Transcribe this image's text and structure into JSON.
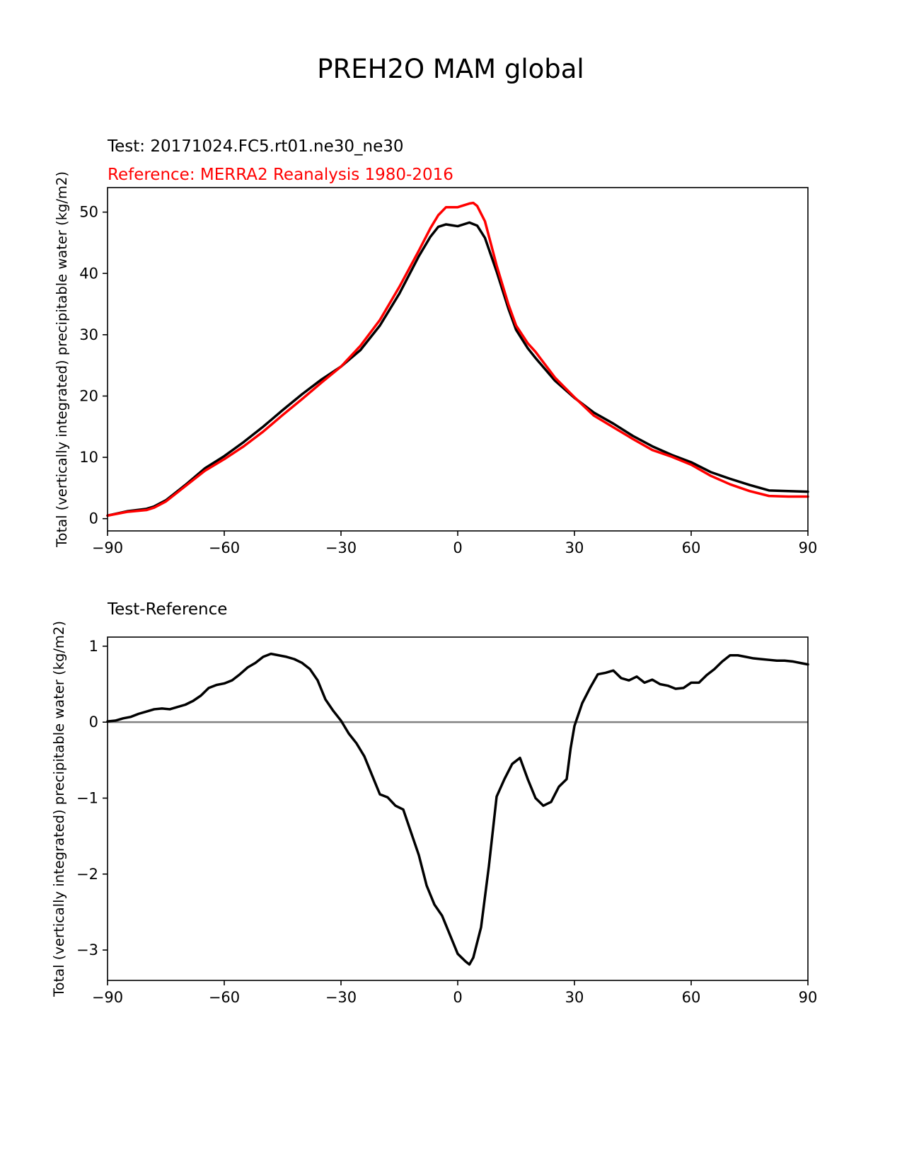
{
  "title": "PREH2O MAM global",
  "chart_data": [
    {
      "type": "line",
      "title_lines": [
        {
          "text": "Test: 20171024.FC5.rt01.ne30_ne30",
          "color": "#000000"
        },
        {
          "text": "Reference: MERRA2 Reanalysis 1980-2016",
          "color": "#ff0000"
        }
      ],
      "xlabel": "",
      "ylabel": "Total (vertically integrated) precipitable water (kg/m2)",
      "xlim": [
        -90,
        90
      ],
      "ylim": [
        -2,
        54
      ],
      "xticks": [
        -90,
        -60,
        -30,
        0,
        30,
        60,
        90
      ],
      "xtick_labels": [
        "−90",
        "−60",
        "−30",
        "0",
        "30",
        "60",
        "90"
      ],
      "yticks": [
        0,
        10,
        20,
        30,
        40,
        50
      ],
      "ytick_labels": [
        "0",
        "10",
        "20",
        "30",
        "40",
        "50"
      ],
      "series": [
        {
          "name": "Test",
          "color": "#000000",
          "x": [
            -90,
            -85,
            -80,
            -78,
            -75,
            -70,
            -65,
            -60,
            -55,
            -50,
            -45,
            -40,
            -35,
            -30,
            -25,
            -20,
            -15,
            -10,
            -7,
            -5,
            -3,
            0,
            3,
            5,
            7,
            10,
            13,
            15,
            18,
            20,
            25,
            30,
            35,
            40,
            45,
            50,
            55,
            60,
            65,
            70,
            75,
            80,
            85,
            90
          ],
          "values": [
            0.5,
            1.2,
            1.6,
            2.0,
            3.0,
            5.5,
            8.2,
            10.2,
            12.5,
            15.0,
            17.7,
            20.3,
            22.7,
            24.8,
            27.5,
            31.5,
            36.7,
            42.8,
            46.0,
            47.6,
            48.0,
            47.7,
            48.3,
            47.8,
            45.8,
            40.3,
            34.3,
            30.8,
            27.8,
            26.2,
            22.5,
            19.7,
            17.3,
            15.5,
            13.5,
            11.8,
            10.4,
            9.2,
            7.6,
            6.5,
            5.5,
            4.6,
            4.5,
            4.4
          ]
        },
        {
          "name": "Reference",
          "color": "#ff0000",
          "x": [
            -90,
            -85,
            -80,
            -78,
            -75,
            -70,
            -65,
            -60,
            -55,
            -50,
            -45,
            -40,
            -35,
            -30,
            -25,
            -20,
            -15,
            -10,
            -7,
            -5,
            -3,
            0,
            3,
            4,
            5,
            7,
            10,
            13,
            15,
            18,
            20,
            25,
            30,
            35,
            40,
            45,
            50,
            55,
            60,
            65,
            70,
            75,
            80,
            85,
            90
          ],
          "values": [
            0.5,
            1.1,
            1.4,
            1.8,
            2.8,
            5.3,
            7.8,
            9.7,
            11.8,
            14.2,
            16.9,
            19.5,
            22.2,
            24.8,
            28.2,
            32.4,
            37.8,
            43.7,
            47.4,
            49.5,
            50.8,
            50.8,
            51.4,
            51.5,
            51.0,
            48.5,
            41.3,
            35.0,
            31.5,
            28.6,
            27.2,
            23.0,
            19.8,
            16.8,
            14.9,
            13.0,
            11.2,
            10.1,
            8.8,
            7.0,
            5.6,
            4.5,
            3.7,
            3.6,
            3.6
          ]
        }
      ]
    },
    {
      "type": "line",
      "title_lines": [
        {
          "text": "Test-Reference",
          "color": "#000000"
        }
      ],
      "xlabel": "",
      "ylabel": "Total (vertically integrated) precipitable water (kg/m2)",
      "xlim": [
        -90,
        90
      ],
      "ylim": [
        -3.4,
        1.12
      ],
      "xticks": [
        -90,
        -60,
        -30,
        0,
        30,
        60,
        90
      ],
      "xtick_labels": [
        "−90",
        "−60",
        "−30",
        "0",
        "30",
        "60",
        "90"
      ],
      "yticks": [
        -3,
        -2,
        -1,
        0,
        1
      ],
      "ytick_labels": [
        "−3",
        "−2",
        "−1",
        "0",
        "1"
      ],
      "reference_line": {
        "y": 0,
        "color": "#808080"
      },
      "series": [
        {
          "name": "Test-Reference",
          "color": "#000000",
          "x": [
            -90,
            -88,
            -86,
            -84,
            -82,
            -80,
            -78,
            -76,
            -74,
            -72,
            -70,
            -68,
            -66,
            -64,
            -62,
            -60,
            -58,
            -56,
            -54,
            -52,
            -50,
            -48,
            -46,
            -44,
            -42,
            -40,
            -38,
            -36,
            -34,
            -32,
            -30,
            -28,
            -26,
            -24,
            -22,
            -20,
            -18,
            -16,
            -14,
            -12,
            -10,
            -8,
            -6,
            -4,
            -2,
            0,
            2,
            3,
            4,
            6,
            8,
            10,
            12,
            14,
            16,
            18,
            20,
            22,
            24,
            26,
            28,
            29,
            30,
            32,
            34,
            36,
            38,
            40,
            42,
            44,
            46,
            48,
            50,
            52,
            54,
            56,
            58,
            60,
            62,
            64,
            66,
            68,
            70,
            72,
            74,
            76,
            78,
            80,
            82,
            84,
            86,
            88,
            90
          ],
          "values": [
            0.01,
            0.02,
            0.05,
            0.07,
            0.11,
            0.14,
            0.17,
            0.18,
            0.17,
            0.2,
            0.23,
            0.28,
            0.35,
            0.45,
            0.49,
            0.51,
            0.55,
            0.63,
            0.72,
            0.78,
            0.86,
            0.9,
            0.88,
            0.86,
            0.83,
            0.78,
            0.7,
            0.55,
            0.3,
            0.15,
            0.02,
            -0.15,
            -0.28,
            -0.45,
            -0.7,
            -0.95,
            -0.99,
            -1.1,
            -1.15,
            -1.45,
            -1.75,
            -2.15,
            -2.4,
            -2.55,
            -2.8,
            -3.05,
            -3.15,
            -3.19,
            -3.1,
            -2.7,
            -1.9,
            -0.98,
            -0.75,
            -0.55,
            -0.47,
            -0.75,
            -1.0,
            -1.1,
            -1.05,
            -0.85,
            -0.75,
            -0.35,
            -0.05,
            0.25,
            0.45,
            0.63,
            0.65,
            0.68,
            0.58,
            0.55,
            0.6,
            0.52,
            0.56,
            0.5,
            0.48,
            0.44,
            0.45,
            0.52,
            0.52,
            0.62,
            0.7,
            0.8,
            0.88,
            0.88,
            0.86,
            0.84,
            0.83,
            0.82,
            0.81,
            0.81,
            0.8,
            0.78,
            0.76
          ]
        }
      ]
    }
  ]
}
